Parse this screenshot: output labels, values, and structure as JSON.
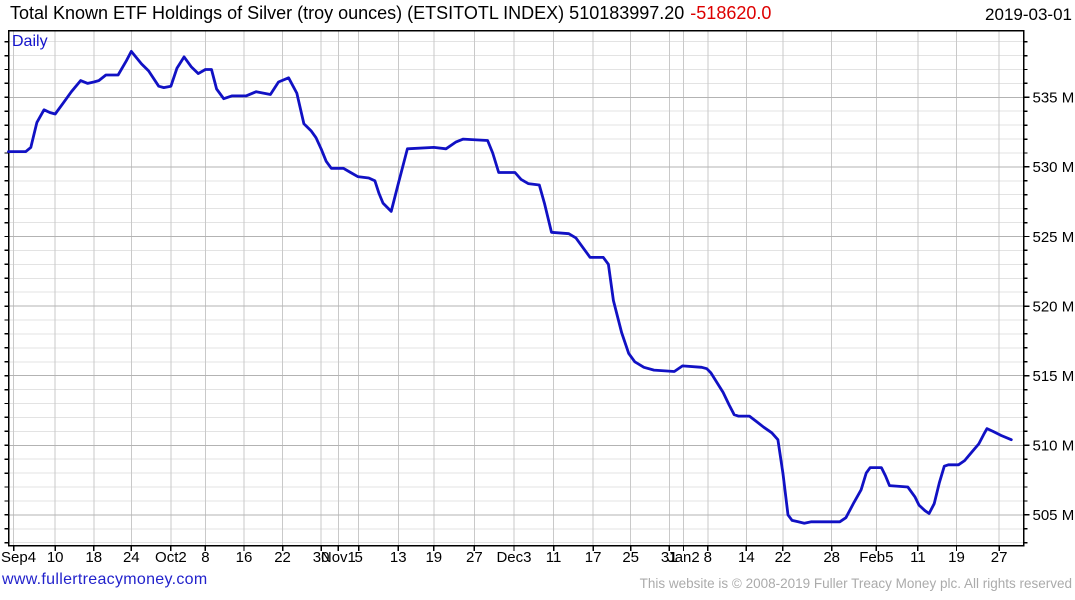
{
  "header": {
    "title": "Total Known ETF Holdings of Silver (troy ounces) (ETSITOTL INDEX) 510183997.20",
    "change": "-518620.0",
    "date": "2019-03-01"
  },
  "chart": {
    "period_label": "Daily"
  },
  "footer": {
    "site_link": "www.fullertreacymoney.com",
    "copyright": "This website is © 2008-2019 Fuller Treacy Money plc. All rights reserved"
  },
  "colors": {
    "line": "#1111c4",
    "change_negative": "#dd0000",
    "period_blue": "#1414cc",
    "link_blue": "#2222cc",
    "axis": "#000000",
    "grid_vertical": "#c9c9c9",
    "grid_major": "#b3b3b3",
    "grid_minor": "#e3e3e3",
    "copyright_gray": "#ababab"
  },
  "chart_data": {
    "type": "line",
    "title": "Total Known ETF Holdings of Silver (troy ounces) (ETSITOTL INDEX)",
    "subtitle": "Daily",
    "last_value": 510183997.2,
    "change": -518620.0,
    "as_of_date": "2019-03-01",
    "unit": "millions of troy ounces",
    "ylabel": "",
    "xlabel": "",
    "ylim": [
      502.8,
      539.8
    ],
    "y_minor_step": 1,
    "grid": true,
    "legend_position": "none",
    "y_ticks": [
      {
        "value": 535,
        "label": "535 M"
      },
      {
        "value": 530,
        "label": "530 M"
      },
      {
        "value": 525,
        "label": "525 M"
      },
      {
        "value": 520,
        "label": "520 M"
      },
      {
        "value": 515,
        "label": "515 M"
      },
      {
        "value": 510,
        "label": "510 M"
      },
      {
        "value": 505,
        "label": "505 M"
      }
    ],
    "x_ticks": [
      {
        "label": "Sep4",
        "pos": 0.005
      },
      {
        "label": "10",
        "pos": 0.046
      },
      {
        "label": "18",
        "pos": 0.084
      },
      {
        "label": "24",
        "pos": 0.121
      },
      {
        "label": "Oct2",
        "pos": 0.16
      },
      {
        "label": "8",
        "pos": 0.194
      },
      {
        "label": "16",
        "pos": 0.232
      },
      {
        "label": "22",
        "pos": 0.27
      },
      {
        "label": "30",
        "pos": 0.308
      },
      {
        "label": "Nov1",
        "pos": 0.325
      },
      {
        "label": "5",
        "pos": 0.345
      },
      {
        "label": "13",
        "pos": 0.384
      },
      {
        "label": "19",
        "pos": 0.419
      },
      {
        "label": "27",
        "pos": 0.459
      },
      {
        "label": "Dec3",
        "pos": 0.498
      },
      {
        "label": "11",
        "pos": 0.537
      },
      {
        "label": "17",
        "pos": 0.576
      },
      {
        "label": "25",
        "pos": 0.613
      },
      {
        "label": "31",
        "pos": 0.651
      },
      {
        "label": "Jan2",
        "pos": 0.665
      },
      {
        "label": "8",
        "pos": 0.689
      },
      {
        "label": "14",
        "pos": 0.727
      },
      {
        "label": "22",
        "pos": 0.763
      },
      {
        "label": "28",
        "pos": 0.811
      },
      {
        "label": "Feb5",
        "pos": 0.855
      },
      {
        "label": "11",
        "pos": 0.896
      },
      {
        "label": "19",
        "pos": 0.934
      },
      {
        "label": "27",
        "pos": 0.976
      }
    ],
    "series": [
      {
        "name": "ETSITOTL INDEX",
        "points_format": "[x_fraction_of_plot_width, value_in_millions_oz]",
        "points": [
          [
            0.0,
            531.1
          ],
          [
            0.017,
            531.1
          ],
          [
            0.022,
            531.4
          ],
          [
            0.028,
            533.2
          ],
          [
            0.035,
            534.1
          ],
          [
            0.041,
            533.9
          ],
          [
            0.046,
            533.8
          ],
          [
            0.054,
            534.6
          ],
          [
            0.062,
            535.4
          ],
          [
            0.071,
            536.2
          ],
          [
            0.078,
            536.0
          ],
          [
            0.084,
            536.1
          ],
          [
            0.089,
            536.2
          ],
          [
            0.096,
            536.6
          ],
          [
            0.108,
            536.6
          ],
          [
            0.116,
            537.6
          ],
          [
            0.121,
            538.3
          ],
          [
            0.131,
            537.4
          ],
          [
            0.138,
            536.9
          ],
          [
            0.148,
            535.8
          ],
          [
            0.153,
            535.7
          ],
          [
            0.16,
            535.8
          ],
          [
            0.166,
            537.1
          ],
          [
            0.173,
            537.9
          ],
          [
            0.18,
            537.2
          ],
          [
            0.187,
            536.7
          ],
          [
            0.194,
            537.0
          ],
          [
            0.2,
            537.0
          ],
          [
            0.205,
            535.6
          ],
          [
            0.212,
            534.9
          ],
          [
            0.22,
            535.1
          ],
          [
            0.234,
            535.1
          ],
          [
            0.244,
            535.4
          ],
          [
            0.251,
            535.3
          ],
          [
            0.258,
            535.2
          ],
          [
            0.266,
            536.1
          ],
          [
            0.276,
            536.4
          ],
          [
            0.284,
            535.3
          ],
          [
            0.291,
            533.1
          ],
          [
            0.298,
            532.6
          ],
          [
            0.303,
            532.1
          ],
          [
            0.308,
            531.3
          ],
          [
            0.313,
            530.4
          ],
          [
            0.318,
            529.9
          ],
          [
            0.33,
            529.9
          ],
          [
            0.337,
            529.6
          ],
          [
            0.344,
            529.3
          ],
          [
            0.355,
            529.2
          ],
          [
            0.361,
            529.0
          ],
          [
            0.365,
            528.1
          ],
          [
            0.369,
            527.4
          ],
          [
            0.377,
            526.8
          ],
          [
            0.384,
            528.8
          ],
          [
            0.393,
            531.3
          ],
          [
            0.419,
            531.4
          ],
          [
            0.431,
            531.3
          ],
          [
            0.441,
            531.8
          ],
          [
            0.448,
            532.0
          ],
          [
            0.472,
            531.9
          ],
          [
            0.477,
            531.0
          ],
          [
            0.483,
            529.6
          ],
          [
            0.499,
            529.6
          ],
          [
            0.505,
            529.1
          ],
          [
            0.512,
            528.8
          ],
          [
            0.523,
            528.7
          ],
          [
            0.528,
            527.4
          ],
          [
            0.535,
            525.3
          ],
          [
            0.552,
            525.2
          ],
          [
            0.559,
            524.9
          ],
          [
            0.568,
            524.0
          ],
          [
            0.573,
            523.5
          ],
          [
            0.586,
            523.5
          ],
          [
            0.591,
            523.0
          ],
          [
            0.596,
            520.4
          ],
          [
            0.604,
            518.1
          ],
          [
            0.611,
            516.6
          ],
          [
            0.617,
            516.0
          ],
          [
            0.626,
            515.6
          ],
          [
            0.636,
            515.4
          ],
          [
            0.656,
            515.3
          ],
          [
            0.664,
            515.7
          ],
          [
            0.683,
            515.6
          ],
          [
            0.688,
            515.5
          ],
          [
            0.692,
            515.2
          ],
          [
            0.698,
            514.5
          ],
          [
            0.704,
            513.8
          ],
          [
            0.71,
            512.9
          ],
          [
            0.715,
            512.2
          ],
          [
            0.719,
            512.1
          ],
          [
            0.73,
            512.1
          ],
          [
            0.737,
            511.7
          ],
          [
            0.744,
            511.3
          ],
          [
            0.752,
            510.9
          ],
          [
            0.758,
            510.4
          ],
          [
            0.763,
            508.0
          ],
          [
            0.768,
            505.0
          ],
          [
            0.772,
            504.6
          ],
          [
            0.778,
            504.5
          ],
          [
            0.784,
            504.4
          ],
          [
            0.791,
            504.5
          ],
          [
            0.819,
            504.5
          ],
          [
            0.825,
            504.8
          ],
          [
            0.833,
            505.9
          ],
          [
            0.84,
            506.8
          ],
          [
            0.845,
            508.0
          ],
          [
            0.849,
            508.4
          ],
          [
            0.86,
            508.4
          ],
          [
            0.864,
            507.8
          ],
          [
            0.868,
            507.1
          ],
          [
            0.886,
            507.0
          ],
          [
            0.893,
            506.3
          ],
          [
            0.897,
            505.7
          ],
          [
            0.903,
            505.3
          ],
          [
            0.907,
            505.1
          ],
          [
            0.912,
            505.8
          ],
          [
            0.917,
            507.3
          ],
          [
            0.922,
            508.5
          ],
          [
            0.926,
            508.6
          ],
          [
            0.936,
            508.6
          ],
          [
            0.942,
            508.9
          ],
          [
            0.949,
            509.5
          ],
          [
            0.956,
            510.1
          ],
          [
            0.961,
            510.8
          ],
          [
            0.964,
            511.2
          ],
          [
            0.97,
            511.0
          ],
          [
            0.978,
            510.7
          ],
          [
            0.988,
            510.4
          ]
        ]
      }
    ]
  }
}
